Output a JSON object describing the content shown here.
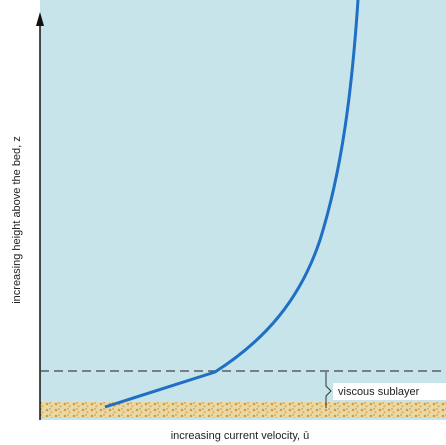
{
  "diagram": {
    "y_axis_label": "increasing height above the bed, z",
    "x_axis_label": "increasing current velocity, ū",
    "annotation": "viscous sublayer"
  }
}
